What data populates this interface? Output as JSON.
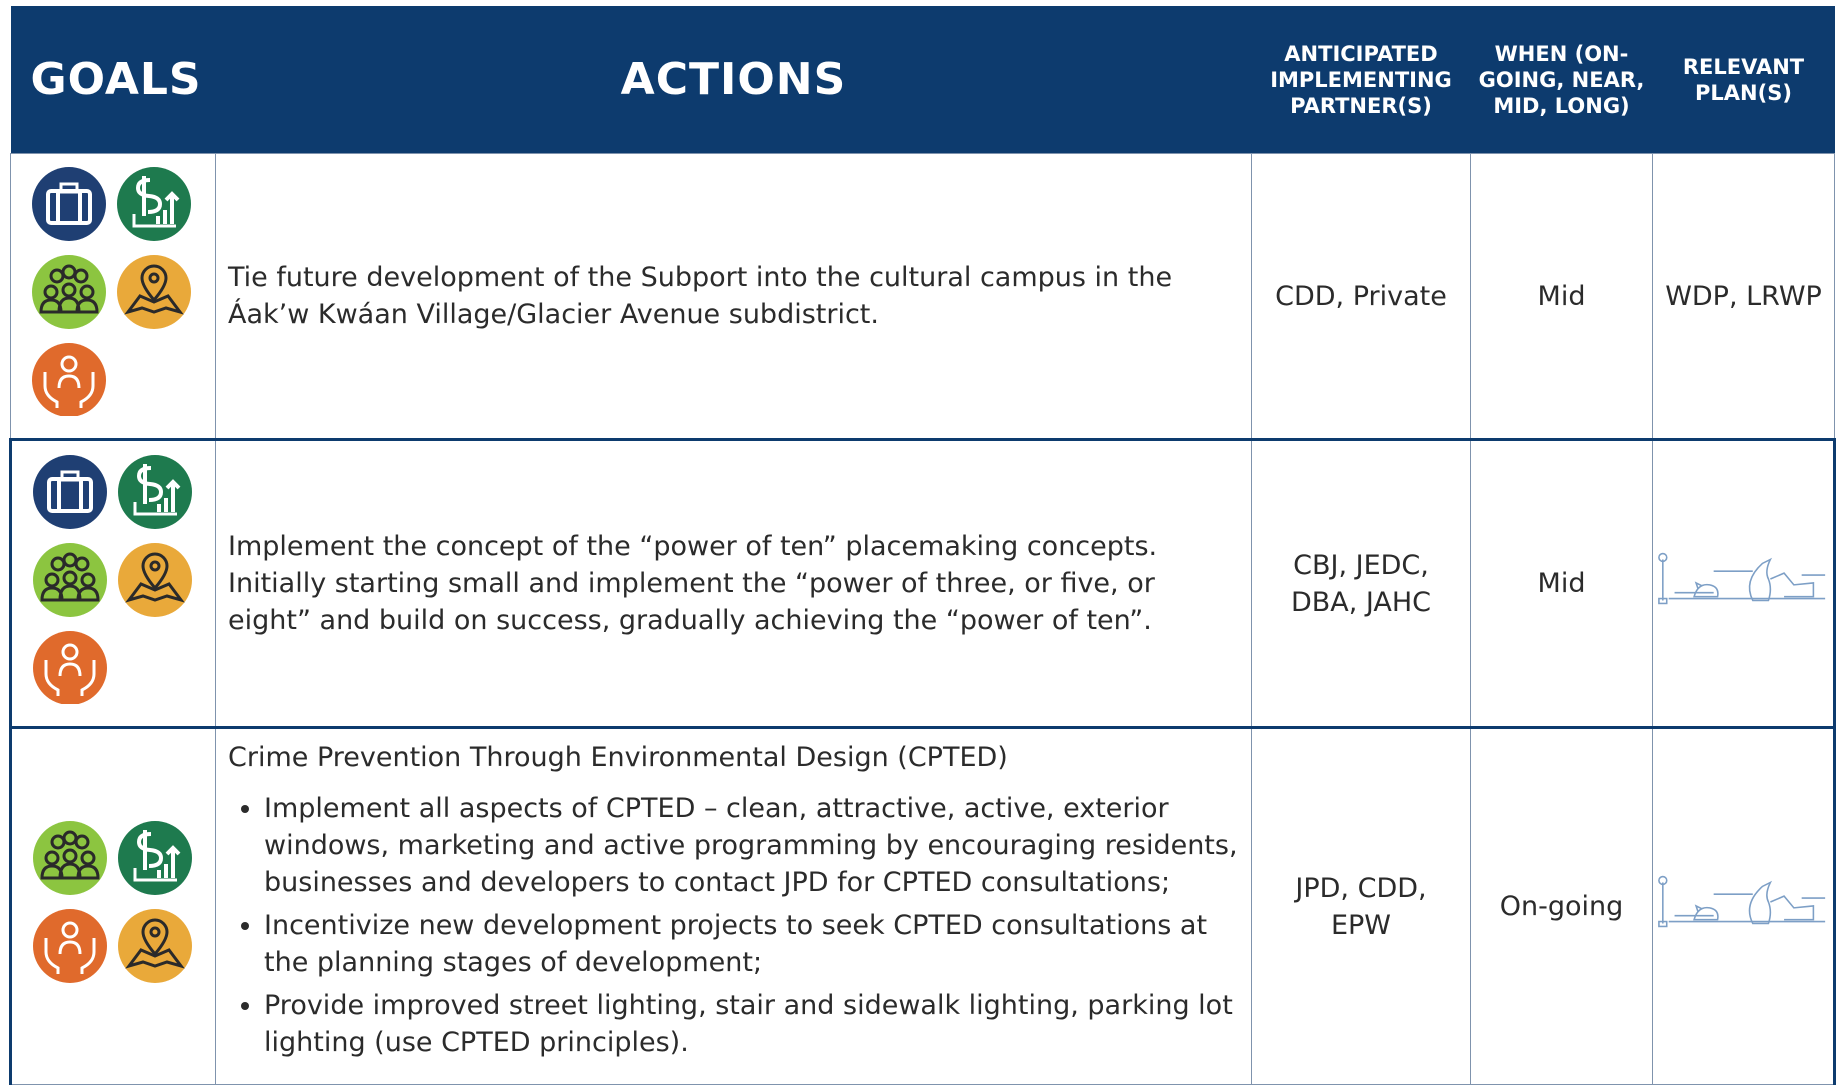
{
  "header": {
    "columns": [
      "GOALS",
      "ACTIONS",
      "ANTICIPATED IMPLEMENTING PARTNER(S)",
      "WHEN (ON-GOING, NEAR, MID, LONG)",
      "RELEVANT PLAN(S)"
    ]
  },
  "table": {
    "rows": [
      {
        "action": "Tie future development of the Subport into the cultural campus in the Áak’w Kwáan Village/Glacier Avenue subdistrict.",
        "partners": "CDD, Private",
        "when": "Mid",
        "plans": "WDP, LRWP"
      },
      {
        "action": "Implement the concept of the “power of ten” placemaking concepts.  Initially starting small and implement the “power of three, or five, or eight” and build on success, gradually achieving the “power of ten”.",
        "partners": "CBJ, JEDC, DBA, JAHC",
        "when": "Mid"
      },
      {
        "action_intro": "Crime Prevention Through Environmental Design (CPTED)",
        "action_bullets": [
          "Implement all aspects of CPTED – clean, attractive, active, exterior windows, marketing and active programming by encouraging residents, businesses and developers to contact JPD for CPTED consultations;",
          "Incentivize new development projects to seek CPTED consultations at the planning stages of development;",
          "Provide improved street lighting, stair and sidewalk lighting, parking lot lighting (use CPTED principles)."
        ],
        "partners": "JPD, CDD, EPW",
        "when": "On-going"
      }
    ]
  }
}
